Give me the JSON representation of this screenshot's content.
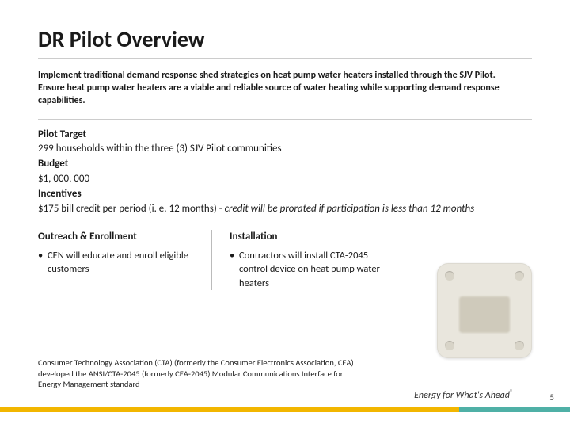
{
  "title": "DR Pilot Overview",
  "intro": "Implement traditional demand response shed strategies on heat pump water heaters installed through the SJV Pilot. Ensure heat pump water heaters are a viable and reliable source of water heating while supporting demand response capabilities.",
  "details": {
    "pilot_target_label": "Pilot Target",
    "pilot_target_value": "299 households within the three (3) SJV Pilot communities",
    "budget_label": "Budget",
    "budget_value": "$1, 000, 000",
    "incentives_label": "Incentives",
    "incentives_value_a": "$175 bill credit per period (i. e. 12 months) - ",
    "incentives_value_b": "credit will be prorated if participation is less than 12 months"
  },
  "columns": {
    "outreach_heading": "Outreach & Enrollment",
    "outreach_bullet": "CEN will educate and enroll eligible customers",
    "install_heading": "Installation",
    "install_bullet": "Contractors will install CTA-2045 control device on heat pump water heaters"
  },
  "footnote": "Consumer Technology Association (CTA) (formerly the Consumer Electronics Association, CEA) developed the ANSI/CTA-2045 (formerly CEA-2045) Modular Communications Interface for Energy Management standard",
  "slogan": "Energy for What's Ahead",
  "slogan_mark": "®",
  "page_number": "5",
  "colors": {
    "accent_yellow": "#f2b600",
    "accent_teal": "#4fb0a6",
    "rule_gray": "#cccccc",
    "text": "#1a1a1a"
  }
}
